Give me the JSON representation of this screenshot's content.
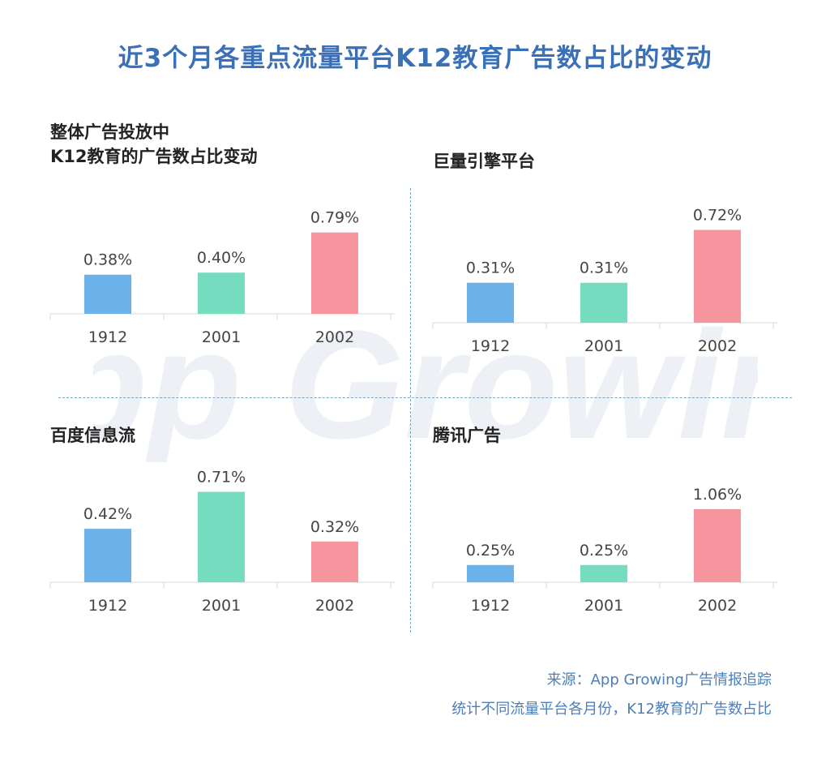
{
  "title": "近3个月各重点流量平台K12教育广告数占比的变动",
  "watermark": {
    "text": "App Growing"
  },
  "footer": {
    "source": "来源：App Growing广告情报追踪",
    "note": "统计不同流量平台各月份，K12教育的广告数占比"
  },
  "colors": {
    "title": "#3b6fb6",
    "footer": "#4d7fb8",
    "divider": "#7aa6c4",
    "bars": [
      "#6cb2ea",
      "#76dcc0",
      "#f7959e"
    ],
    "axis": "#d9d9d9",
    "watermark": "#e8ecf2"
  },
  "chart_data": [
    {
      "type": "bar",
      "title": "整体广告投放中",
      "title_line2": "K12教育的广告数占比变动",
      "categories": [
        "1912",
        "2001",
        "2002"
      ],
      "values": [
        0.38,
        0.4,
        0.79
      ],
      "labels": [
        "0.38%",
        "0.40%",
        "0.79%"
      ],
      "unit": "%"
    },
    {
      "type": "bar",
      "title": "巨量引擎平台",
      "categories": [
        "1912",
        "2001",
        "2002"
      ],
      "values": [
        0.31,
        0.31,
        0.72
      ],
      "labels": [
        "0.31%",
        "0.31%",
        "0.72%"
      ],
      "unit": "%"
    },
    {
      "type": "bar",
      "title": "百度信息流",
      "categories": [
        "1912",
        "2001",
        "2002"
      ],
      "values": [
        0.42,
        0.71,
        0.32
      ],
      "labels": [
        "0.42%",
        "0.71%",
        "0.32%"
      ],
      "unit": "%"
    },
    {
      "type": "bar",
      "title": "腾讯广告",
      "categories": [
        "1912",
        "2001",
        "2002"
      ],
      "values": [
        0.25,
        0.25,
        1.06
      ],
      "labels": [
        "0.25%",
        "0.25%",
        "1.06%"
      ],
      "unit": "%"
    }
  ]
}
